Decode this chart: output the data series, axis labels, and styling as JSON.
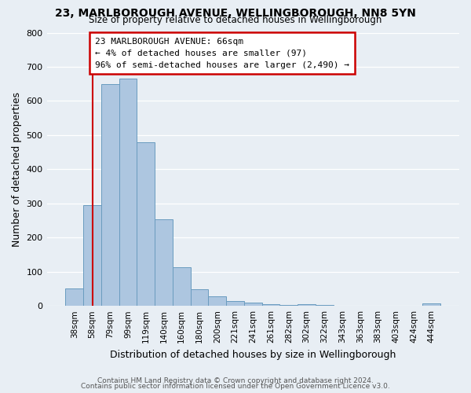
{
  "title": "23, MARLBOROUGH AVENUE, WELLINGBOROUGH, NN8 5YN",
  "subtitle": "Size of property relative to detached houses in Wellingborough",
  "xlabel": "Distribution of detached houses by size in Wellingborough",
  "ylabel": "Number of detached properties",
  "bar_labels": [
    "38sqm",
    "58sqm",
    "79sqm",
    "99sqm",
    "119sqm",
    "140sqm",
    "160sqm",
    "180sqm",
    "200sqm",
    "221sqm",
    "241sqm",
    "261sqm",
    "282sqm",
    "302sqm",
    "322sqm",
    "343sqm",
    "363sqm",
    "383sqm",
    "403sqm",
    "424sqm",
    "444sqm"
  ],
  "bar_values": [
    50,
    295,
    650,
    665,
    478,
    254,
    113,
    48,
    28,
    15,
    10,
    5,
    3,
    6,
    2,
    0,
    0,
    0,
    0,
    0,
    8
  ],
  "bar_color": "#adc6e0",
  "bar_edge_color": "#6a9cbf",
  "vline_x": 1.0,
  "vline_color": "#cc0000",
  "annotation_text": "23 MARLBOROUGH AVENUE: 66sqm\n← 4% of detached houses are smaller (97)\n96% of semi-detached houses are larger (2,490) →",
  "annotation_box_color": "#ffffff",
  "annotation_box_edge_color": "#cc0000",
  "ylim": [
    0,
    800
  ],
  "yticks": [
    0,
    100,
    200,
    300,
    400,
    500,
    600,
    700,
    800
  ],
  "background_color": "#e8eef4",
  "footer_line1": "Contains HM Land Registry data © Crown copyright and database right 2024.",
  "footer_line2": "Contains public sector information licensed under the Open Government Licence v3.0."
}
